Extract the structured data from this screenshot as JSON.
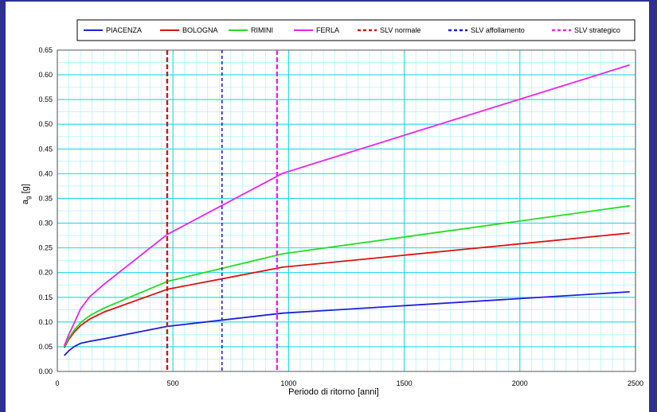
{
  "chart_data": {
    "type": "line",
    "xlabel": "Periodo di ritorno [anni]",
    "ylabel_main": "a",
    "ylabel_sub": "g",
    "ylabel_tail": " [g]",
    "xlim": [
      0,
      2500
    ],
    "ylim": [
      0,
      0.65
    ],
    "x_ticks": [
      0,
      500,
      1000,
      1500,
      2000,
      2500
    ],
    "y_ticks": [
      "0.00",
      "0.05",
      "0.10",
      "0.15",
      "0.20",
      "0.25",
      "0.30",
      "0.35",
      "0.40",
      "0.45",
      "0.50",
      "0.55",
      "0.60",
      "0.65"
    ],
    "minor_grid": {
      "x_step": 50,
      "y_step": 0.025
    },
    "grid": true,
    "legend_position": "top",
    "series": [
      {
        "name": "PIACENZA",
        "color": "#1f1fdc",
        "style": "solid",
        "x": [
          30,
          50,
          72,
          101,
          140,
          201,
          475,
          975,
          2475
        ],
        "y": [
          0.032,
          0.042,
          0.05,
          0.057,
          0.061,
          0.066,
          0.091,
          0.118,
          0.161
        ]
      },
      {
        "name": "BOLOGNA",
        "color": "#e01010",
        "style": "solid",
        "x": [
          30,
          50,
          72,
          101,
          140,
          201,
          475,
          975,
          2475
        ],
        "y": [
          0.048,
          0.065,
          0.079,
          0.093,
          0.106,
          0.12,
          0.166,
          0.211,
          0.28
        ]
      },
      {
        "name": "RIMINI",
        "color": "#22dd22",
        "style": "solid",
        "x": [
          30,
          50,
          72,
          101,
          140,
          201,
          475,
          975,
          2475
        ],
        "y": [
          0.05,
          0.068,
          0.083,
          0.099,
          0.113,
          0.128,
          0.182,
          0.238,
          0.335
        ]
      },
      {
        "name": "FERLA",
        "color": "#ee22ee",
        "style": "solid",
        "x": [
          30,
          50,
          72,
          101,
          140,
          201,
          475,
          975,
          2475
        ],
        "y": [
          0.052,
          0.075,
          0.097,
          0.127,
          0.151,
          0.176,
          0.277,
          0.401,
          0.62
        ]
      },
      {
        "name": "SLV normale",
        "color": "#e01010",
        "style": "dashed",
        "vline": 475
      },
      {
        "name": "SLV affollamento",
        "color": "#1f1fdc",
        "style": "dashed",
        "vline": 712
      },
      {
        "name": "SLV strategico",
        "color": "#ee22ee",
        "style": "dashed",
        "vline": 950
      }
    ]
  }
}
